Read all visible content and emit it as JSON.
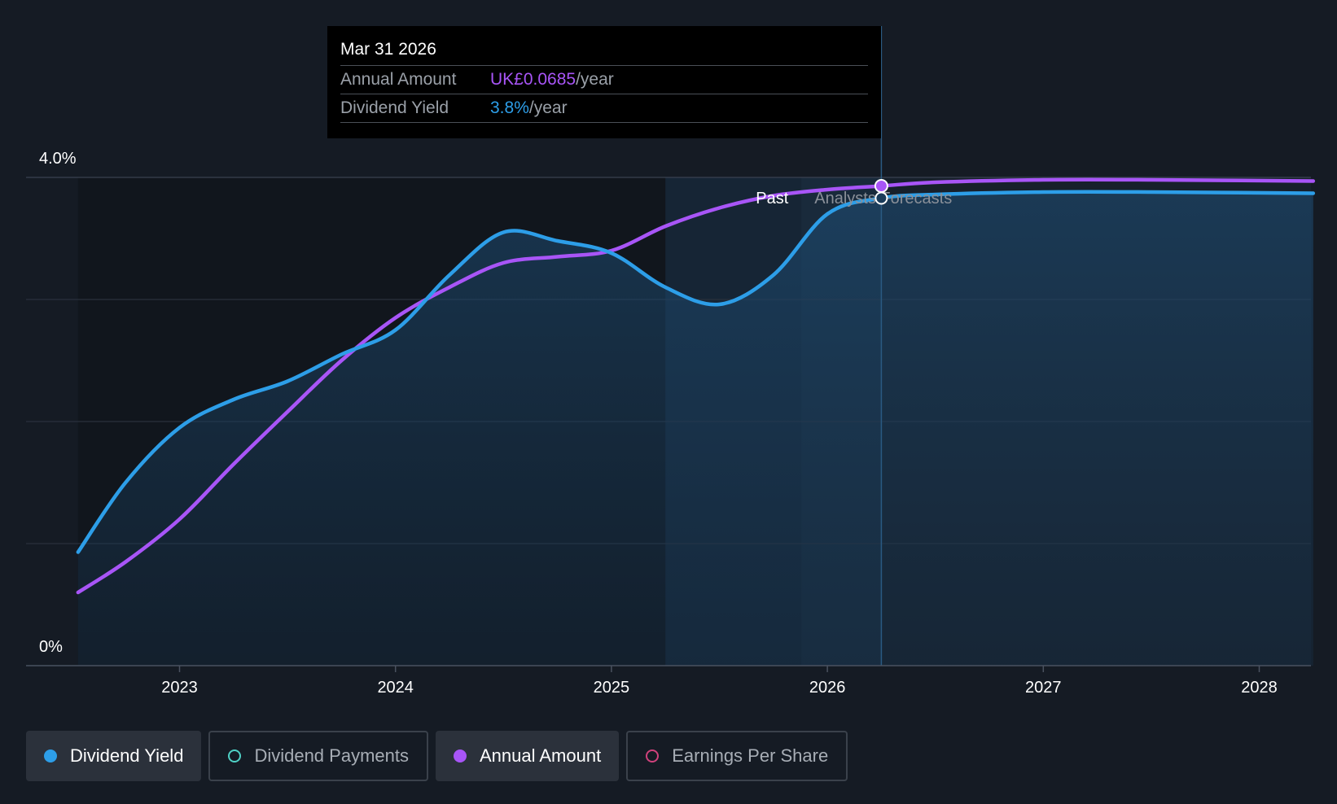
{
  "chart_data": {
    "type": "line",
    "x_ticks": [
      "2023",
      "2024",
      "2025",
      "2026",
      "2027",
      "2028"
    ],
    "y_labels": {
      "top": "4.0%",
      "bottom": "0%"
    },
    "ylim": [
      0,
      4.0
    ],
    "xlim": [
      2022.3,
      2028.25
    ],
    "grid": true,
    "regions": {
      "past_label": "Past",
      "forecast_label": "Analysts Forecasts",
      "past_end": 2025.88,
      "forecast_start": 2025.88
    },
    "highlight_band": [
      2025.25,
      2026.25
    ],
    "series": [
      {
        "name": "Dividend Yield",
        "color": "#2d9ee8",
        "points": [
          [
            2022.53,
            0.93
          ],
          [
            2022.75,
            1.5
          ],
          [
            2023.0,
            1.95
          ],
          [
            2023.25,
            2.18
          ],
          [
            2023.5,
            2.33
          ],
          [
            2023.75,
            2.55
          ],
          [
            2024.0,
            2.75
          ],
          [
            2024.25,
            3.2
          ],
          [
            2024.5,
            3.55
          ],
          [
            2024.75,
            3.48
          ],
          [
            2025.0,
            3.38
          ],
          [
            2025.25,
            3.1
          ],
          [
            2025.5,
            2.96
          ],
          [
            2025.75,
            3.2
          ],
          [
            2026.0,
            3.7
          ],
          [
            2026.25,
            3.83
          ],
          [
            2026.5,
            3.86
          ],
          [
            2027.0,
            3.88
          ],
          [
            2027.5,
            3.88
          ],
          [
            2028.25,
            3.87
          ]
        ]
      },
      {
        "name": "Annual Amount",
        "color": "#a855f7",
        "points": [
          [
            2022.53,
            0.6
          ],
          [
            2022.75,
            0.85
          ],
          [
            2023.0,
            1.2
          ],
          [
            2023.25,
            1.65
          ],
          [
            2023.5,
            2.08
          ],
          [
            2023.75,
            2.5
          ],
          [
            2024.0,
            2.85
          ],
          [
            2024.25,
            3.1
          ],
          [
            2024.5,
            3.3
          ],
          [
            2024.75,
            3.35
          ],
          [
            2025.0,
            3.4
          ],
          [
            2025.25,
            3.6
          ],
          [
            2025.5,
            3.75
          ],
          [
            2025.75,
            3.85
          ],
          [
            2026.0,
            3.9
          ],
          [
            2026.25,
            3.93
          ],
          [
            2026.5,
            3.96
          ],
          [
            2027.0,
            3.98
          ],
          [
            2027.5,
            3.98
          ],
          [
            2028.25,
            3.97
          ]
        ]
      }
    ],
    "marker_x": 2026.25
  },
  "tooltip": {
    "date": "Mar 31 2026",
    "rows": [
      {
        "label": "Annual Amount",
        "value": "UK£0.0685",
        "unit": "/year"
      },
      {
        "label": "Dividend Yield",
        "value": "3.8%",
        "unit": "/year"
      }
    ]
  },
  "legend": [
    {
      "label": "Dividend Yield",
      "color": "#2d9ee8",
      "active": true,
      "filled": true
    },
    {
      "label": "Dividend Payments",
      "color": "#4fd1c5",
      "active": false,
      "filled": false
    },
    {
      "label": "Annual Amount",
      "color": "#a855f7",
      "active": true,
      "filled": true
    },
    {
      "label": "Earnings Per Share",
      "color": "#d0427c",
      "active": false,
      "filled": false
    }
  ]
}
